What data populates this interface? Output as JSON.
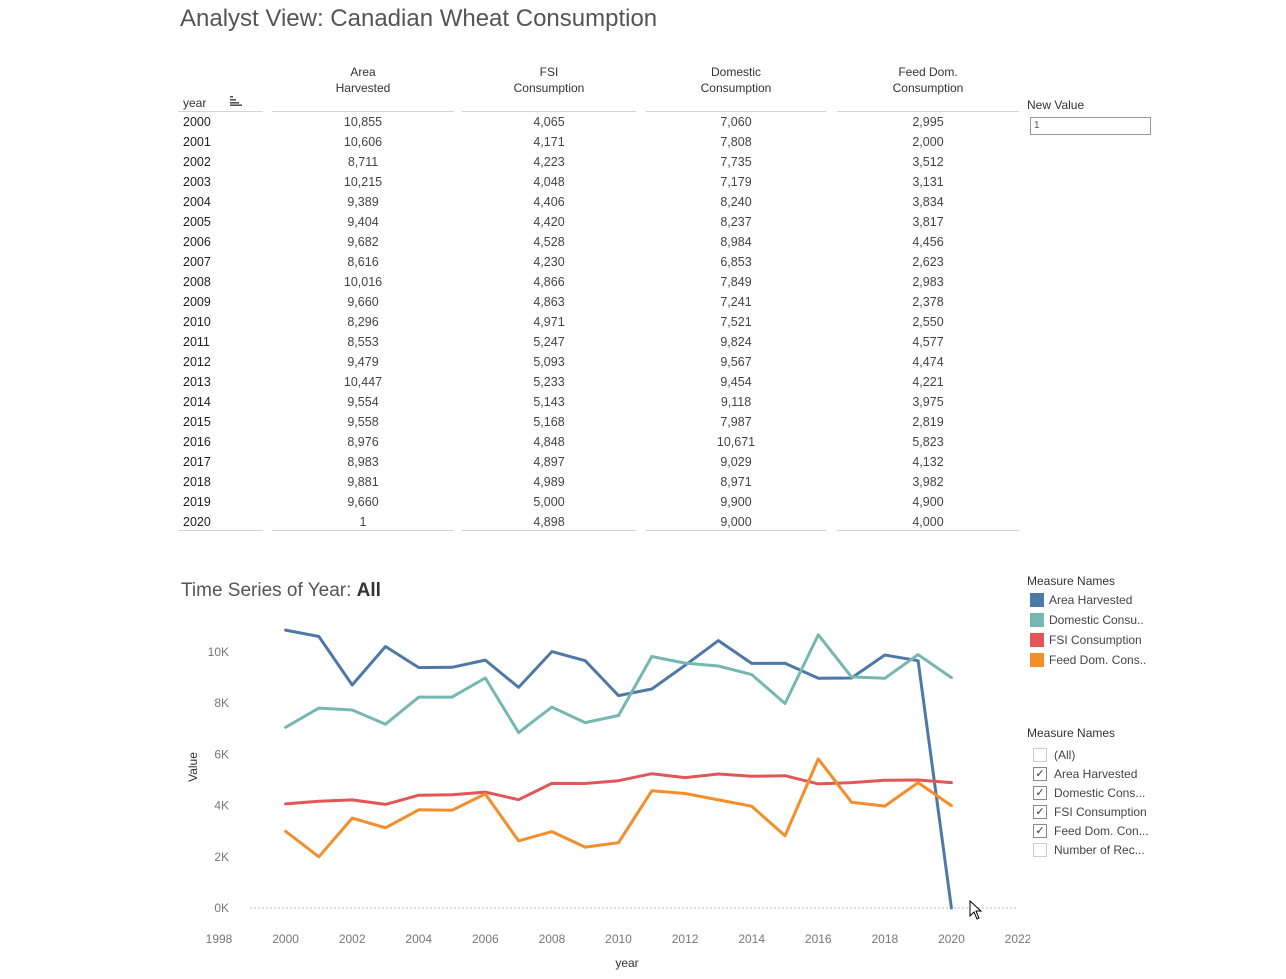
{
  "title": "Analyst View: Canadian Wheat Consumption",
  "table": {
    "year_header": "year",
    "columns": [
      {
        "line1": "Area",
        "line2": "Harvested"
      },
      {
        "line1": "FSI",
        "line2": "Consumption"
      },
      {
        "line1": "Domestic",
        "line2": "Consumption"
      },
      {
        "line1": "Feed Dom.",
        "line2": "Consumption"
      }
    ],
    "rows": [
      {
        "year": "2000",
        "v": [
          "10,855",
          "4,065",
          "7,060",
          "2,995"
        ]
      },
      {
        "year": "2001",
        "v": [
          "10,606",
          "4,171",
          "7,808",
          "2,000"
        ]
      },
      {
        "year": "2002",
        "v": [
          "8,711",
          "4,223",
          "7,735",
          "3,512"
        ]
      },
      {
        "year": "2003",
        "v": [
          "10,215",
          "4,048",
          "7,179",
          "3,131"
        ]
      },
      {
        "year": "2004",
        "v": [
          "9,389",
          "4,406",
          "8,240",
          "3,834"
        ]
      },
      {
        "year": "2005",
        "v": [
          "9,404",
          "4,420",
          "8,237",
          "3,817"
        ]
      },
      {
        "year": "2006",
        "v": [
          "9,682",
          "4,528",
          "8,984",
          "4,456"
        ]
      },
      {
        "year": "2007",
        "v": [
          "8,616",
          "4,230",
          "6,853",
          "2,623"
        ]
      },
      {
        "year": "2008",
        "v": [
          "10,016",
          "4,866",
          "7,849",
          "2,983"
        ]
      },
      {
        "year": "2009",
        "v": [
          "9,660",
          "4,863",
          "7,241",
          "2,378"
        ]
      },
      {
        "year": "2010",
        "v": [
          "8,296",
          "4,971",
          "7,521",
          "2,550"
        ]
      },
      {
        "year": "2011",
        "v": [
          "8,553",
          "5,247",
          "9,824",
          "4,577"
        ]
      },
      {
        "year": "2012",
        "v": [
          "9,479",
          "5,093",
          "9,567",
          "4,474"
        ]
      },
      {
        "year": "2013",
        "v": [
          "10,447",
          "5,233",
          "9,454",
          "4,221"
        ]
      },
      {
        "year": "2014",
        "v": [
          "9,554",
          "5,143",
          "9,118",
          "3,975"
        ]
      },
      {
        "year": "2015",
        "v": [
          "9,558",
          "5,168",
          "7,987",
          "2,819"
        ]
      },
      {
        "year": "2016",
        "v": [
          "8,976",
          "4,848",
          "10,671",
          "5,823"
        ]
      },
      {
        "year": "2017",
        "v": [
          "8,983",
          "4,897",
          "9,029",
          "4,132"
        ]
      },
      {
        "year": "2018",
        "v": [
          "9,881",
          "4,989",
          "8,971",
          "3,982"
        ]
      },
      {
        "year": "2019",
        "v": [
          "9,660",
          "5,000",
          "9,900",
          "4,900"
        ]
      },
      {
        "year": "2020",
        "v": [
          "1",
          "4,898",
          "9,000",
          "4,000"
        ]
      }
    ]
  },
  "parameter": {
    "label": "New Value",
    "value": "1"
  },
  "chart_title": {
    "prefix": "Time Series of Year: ",
    "value": "All"
  },
  "legend": {
    "title": "Measure Names",
    "items": [
      {
        "label": "Area Harvested",
        "color": "#4e79a7"
      },
      {
        "label": "Domestic Consu..",
        "color": "#76b7b2"
      },
      {
        "label": "FSI Consumption",
        "color": "#e15759"
      },
      {
        "label": "Feed Dom. Cons..",
        "color": "#f28e2b"
      }
    ]
  },
  "filter": {
    "title": "Measure Names",
    "items": [
      {
        "label": "(All)",
        "checked": false
      },
      {
        "label": "Area Harvested",
        "checked": true
      },
      {
        "label": "Domestic Cons...",
        "checked": true
      },
      {
        "label": "FSI Consumption",
        "checked": true
      },
      {
        "label": "Feed Dom. Con...",
        "checked": true
      },
      {
        "label": "Number of Rec...",
        "checked": false
      }
    ]
  },
  "chart_data": {
    "type": "line",
    "xlabel": "year",
    "ylabel": "Value",
    "xlim": [
      1998,
      2022
    ],
    "ylim": [
      0,
      11000
    ],
    "x_ticks": [
      "1998",
      "2000",
      "2002",
      "2004",
      "2006",
      "2008",
      "2010",
      "2012",
      "2014",
      "2016",
      "2018",
      "2020",
      "2022"
    ],
    "y_ticks": [
      {
        "value": 0,
        "label": "0K"
      },
      {
        "value": 2000,
        "label": "2K"
      },
      {
        "value": 4000,
        "label": "4K"
      },
      {
        "value": 6000,
        "label": "6K"
      },
      {
        "value": 8000,
        "label": "8K"
      },
      {
        "value": 10000,
        "label": "10K"
      }
    ],
    "x": [
      2000,
      2001,
      2002,
      2003,
      2004,
      2005,
      2006,
      2007,
      2008,
      2009,
      2010,
      2011,
      2012,
      2013,
      2014,
      2015,
      2016,
      2017,
      2018,
      2019,
      2020
    ],
    "series": [
      {
        "name": "Area Harvested",
        "color": "#4e79a7",
        "values": [
          10855,
          10606,
          8711,
          10215,
          9389,
          9404,
          9682,
          8616,
          10016,
          9660,
          8296,
          8553,
          9479,
          10447,
          9554,
          9558,
          8976,
          8983,
          9881,
          9660,
          1
        ]
      },
      {
        "name": "Domestic Consumption",
        "color": "#76b7b2",
        "values": [
          7060,
          7808,
          7735,
          7179,
          8240,
          8237,
          8984,
          6853,
          7849,
          7241,
          7521,
          9824,
          9567,
          9454,
          9118,
          7987,
          10671,
          9029,
          8971,
          9900,
          9000
        ]
      },
      {
        "name": "FSI Consumption",
        "color": "#e15759",
        "values": [
          4065,
          4171,
          4223,
          4048,
          4406,
          4420,
          4528,
          4230,
          4866,
          4863,
          4971,
          5247,
          5093,
          5233,
          5143,
          5168,
          4848,
          4897,
          4989,
          5000,
          4898
        ]
      },
      {
        "name": "Feed Dom. Consumption",
        "color": "#f28e2b",
        "values": [
          2995,
          2000,
          3512,
          3131,
          3834,
          3817,
          4456,
          2623,
          2983,
          2378,
          2550,
          4577,
          4474,
          4221,
          3975,
          2819,
          5823,
          4132,
          3982,
          4900,
          4000
        ]
      }
    ]
  }
}
